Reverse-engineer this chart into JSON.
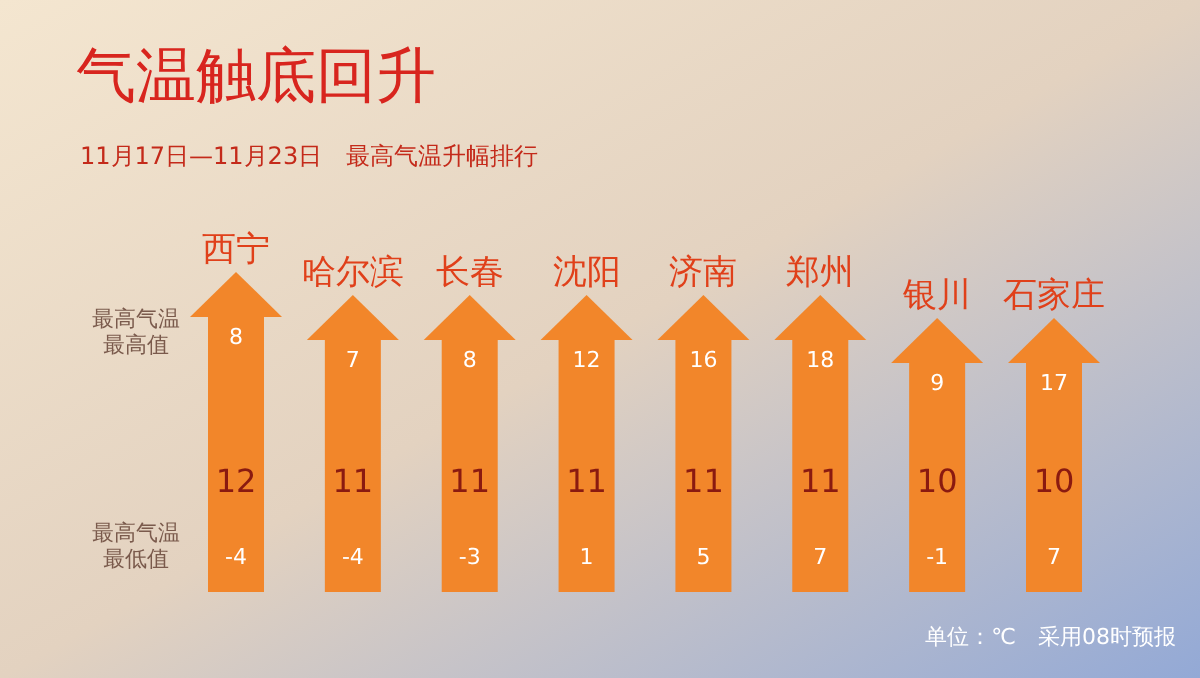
{
  "chart_data": {
    "type": "bar",
    "title": "气温触底回升",
    "subtitle": "11月17日—11月23日　最高气温升幅排行",
    "categories": [
      "西宁",
      "哈尔滨",
      "长春",
      "沈阳",
      "济南",
      "郑州",
      "银川",
      "石家庄"
    ],
    "values": [
      12,
      11,
      11,
      11,
      11,
      11,
      10,
      10
    ],
    "color": "#f2862a",
    "data_labels": true,
    "annotations": [
      "单位：℃　采用08时预报",
      "最高气温",
      "最高值",
      "最高气温",
      "最低值",
      "8",
      "7",
      "8",
      "12",
      "16",
      "18",
      "9",
      "17",
      "-4",
      "-4",
      "-3",
      "1",
      "5",
      "7",
      "-1",
      "7"
    ]
  }
}
